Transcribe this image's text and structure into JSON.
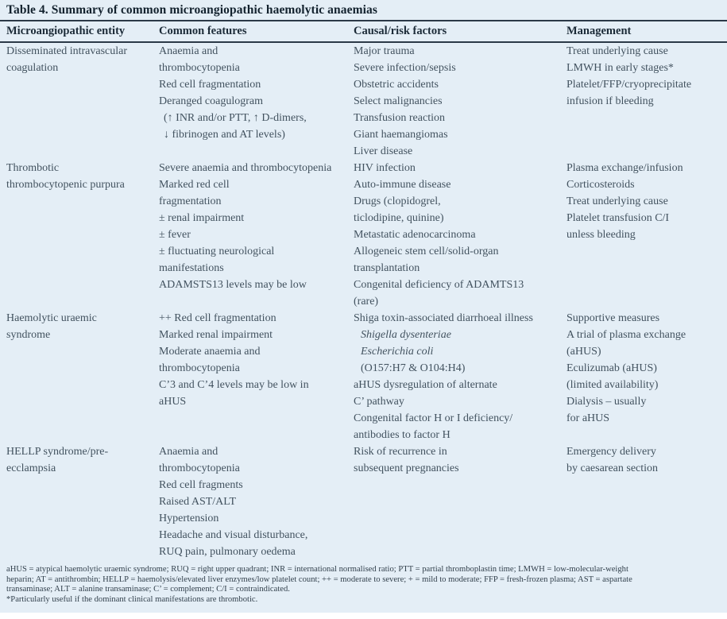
{
  "table": {
    "title": "Table 4. Summary of common microangiopathic haemolytic anaemias",
    "columns": [
      "Microangiopathic entity",
      "Common features",
      "Causal/risk factors",
      "Management"
    ],
    "rows": [
      {
        "entity": [
          "Disseminated intravascular",
          "coagulation"
        ],
        "features": [
          "Anaemia and",
          "thrombocytopenia",
          "Red cell fragmentation",
          "Deranged coagulogram",
          {
            "text": "(↑ INR and/or PTT, ↑ D-dimers,",
            "indent": true
          },
          {
            "text": "↓ fibrinogen and AT levels)",
            "indent": true
          }
        ],
        "causes": [
          "Major trauma",
          "Severe infection/sepsis",
          "Obstetric accidents",
          "Select malignancies",
          "Transfusion reaction",
          "Giant haemangiomas",
          "Liver disease"
        ],
        "management": [
          "Treat underlying cause",
          "LMWH in early stages*",
          "Platelet/FFP/cryoprecipitate",
          "infusion if bleeding"
        ]
      },
      {
        "entity": [
          "Thrombotic",
          "thrombocytopenic purpura"
        ],
        "features": [
          "Severe anaemia and thrombocytopenia",
          "Marked red cell",
          "fragmentation",
          "± renal impairment",
          "± fever",
          "± fluctuating neurological",
          "manifestations",
          "ADAMSTS13 levels may be low"
        ],
        "causes": [
          "HIV infection",
          "Auto-immune disease",
          "Drugs (clopidogrel,",
          "ticlodipine, quinine)",
          "Metastatic adenocarcinoma",
          "Allogeneic stem cell/solid-organ",
          "transplantation",
          "Congenital deficiency of ADAMTS13",
          "(rare)"
        ],
        "management": [
          "Plasma exchange/infusion",
          "Corticosteroids",
          "Treat underlying cause",
          "Platelet transfusion C/I",
          "unless bleeding"
        ]
      },
      {
        "entity": [
          "Haemolytic uraemic",
          "syndrome"
        ],
        "features": [
          "++ Red cell fragmentation",
          "Marked renal impairment",
          "Moderate anaemia and",
          "thrombocytopenia",
          "C’3 and C’4 levels may be low in",
          "aHUS"
        ],
        "causes": [
          "Shiga toxin-associated diarrhoeal illness",
          {
            "text": "Shigella dysenteriae",
            "indent2": true,
            "italic": true
          },
          {
            "text": "Escherichia coli",
            "indent2": true,
            "italic": true
          },
          {
            "text": "(O157:H7 & O104:H4)",
            "indent2": true
          },
          "aHUS dysregulation of alternate",
          "C’ pathway",
          "Congenital factor H or I deficiency/",
          "antibodies to factor H"
        ],
        "management": [
          "Supportive measures",
          "A trial of plasma exchange",
          "(aHUS)",
          "Eculizumab (aHUS)",
          "(limited availability)",
          "Dialysis – usually",
          "for aHUS"
        ]
      },
      {
        "entity": [
          "HELLP syndrome/pre-",
          "ecclampsia"
        ],
        "features": [
          "Anaemia and",
          "thrombocytopenia",
          "Red cell fragments",
          "Raised AST/ALT",
          "Hypertension",
          "Headache and visual disturbance,",
          "RUQ pain, pulmonary oedema"
        ],
        "causes": [
          "Risk of recurrence in",
          "subsequent pregnancies"
        ],
        "management": [
          "Emergency delivery",
          "by caesarean section"
        ]
      }
    ],
    "footnotes": [
      "aHUS = atypical haemolytic uraemic syndrome; RUQ = right upper quadrant; INR = international normalised ratio; PTT = partial thromboplastin time; LMWH = low-molecular-weight",
      "heparin; AT = antithrombin; HELLP = haemolysis/elevated liver enzymes/low platelet count; ++ = moderate to severe; + = mild to moderate; FFP = fresh-frozen plasma; AST = aspartate",
      "transaminase; ALT = alanine transaminase; C’ = complement; C/I = contraindicated.",
      "*Particularly useful if the dominant clinical manifestations are thrombotic."
    ],
    "colors": {
      "panel_background": "#e4eef6",
      "rule": "#2b3947",
      "title_text": "#13222e",
      "body_text": "#42525f"
    }
  }
}
